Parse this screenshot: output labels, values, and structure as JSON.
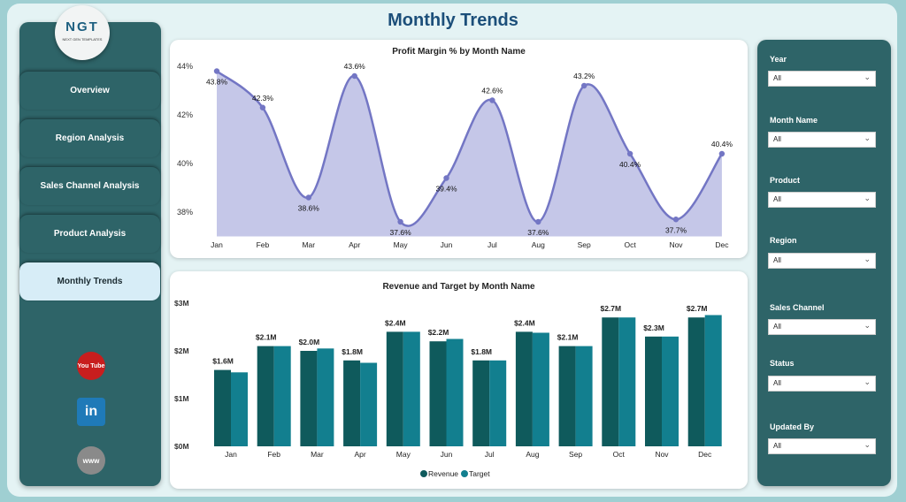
{
  "header": {
    "title": "Monthly Trends"
  },
  "logo": {
    "text": "NGT",
    "subtitle": "NEXT GEN TEMPLATES"
  },
  "nav": [
    {
      "label": "Overview"
    },
    {
      "label": "Region Analysis"
    },
    {
      "label": "Sales Channel Analysis"
    },
    {
      "label": "Product Analysis"
    },
    {
      "label": "Monthly Trends",
      "active": true
    }
  ],
  "social": [
    {
      "icon": "youtube-icon",
      "label": "You Tube"
    },
    {
      "icon": "linkedin-icon",
      "label": "in"
    },
    {
      "icon": "website-icon",
      "label": "www"
    }
  ],
  "filters": [
    {
      "label": "Year",
      "value": "All"
    },
    {
      "label": "Month Name",
      "value": "All"
    },
    {
      "label": "Product",
      "value": "All"
    },
    {
      "label": "Region",
      "value": "All"
    },
    {
      "label": "Sales Channel",
      "value": "All"
    },
    {
      "label": "Status",
      "value": "All"
    },
    {
      "label": "Updated By",
      "value": "All"
    }
  ],
  "chart_data": [
    {
      "type": "area",
      "title": "Profit Margin % by Month Name",
      "categories": [
        "Jan",
        "Feb",
        "Mar",
        "Apr",
        "May",
        "Jun",
        "Jul",
        "Aug",
        "Sep",
        "Oct",
        "Nov",
        "Dec"
      ],
      "values": [
        43.8,
        42.3,
        38.6,
        43.6,
        37.6,
        39.4,
        42.6,
        37.6,
        43.2,
        40.4,
        37.7,
        40.4
      ],
      "labels": [
        "43.8%",
        "42.3%",
        "38.6%",
        "43.6%",
        "37.6%",
        "39.4%",
        "42.6%",
        "37.6%",
        "43.2%",
        "40.4%",
        "37.7%",
        "40.4%"
      ],
      "yticks": [
        "38%",
        "40%",
        "42%",
        "44%"
      ],
      "ytick_values": [
        38,
        40,
        42,
        44
      ],
      "ylim": [
        37,
        44.3
      ],
      "color": "#7376c4",
      "fill": "#c5c7e8"
    },
    {
      "type": "bar",
      "title": "Revenue and Target by Month Name",
      "categories": [
        "Jan",
        "Feb",
        "Mar",
        "Apr",
        "May",
        "Jun",
        "Jul",
        "Aug",
        "Sep",
        "Oct",
        "Nov",
        "Dec"
      ],
      "series": [
        {
          "name": "Revenue",
          "values": [
            1.6,
            2.1,
            2.0,
            1.8,
            2.4,
            2.2,
            1.8,
            2.4,
            2.1,
            2.7,
            2.3,
            2.7
          ],
          "color": "#0f5a5c"
        },
        {
          "name": "Target",
          "values": [
            1.55,
            2.1,
            2.05,
            1.75,
            2.4,
            2.25,
            1.8,
            2.38,
            2.1,
            2.7,
            2.3,
            2.75
          ],
          "color": "#127f8f"
        }
      ],
      "labels": [
        "$1.6M",
        "$2.1M",
        "$2.0M",
        "$1.8M",
        "$2.4M",
        "$2.2M",
        "$1.8M",
        "$2.4M",
        "$2.1M",
        "$2.7M",
        "$2.3M",
        "$2.7M"
      ],
      "yticks": [
        "$0M",
        "$1M",
        "$2M",
        "$3M"
      ],
      "ytick_values": [
        0,
        1,
        2,
        3
      ],
      "ylim": [
        0,
        3
      ],
      "legend": "bottom"
    }
  ]
}
